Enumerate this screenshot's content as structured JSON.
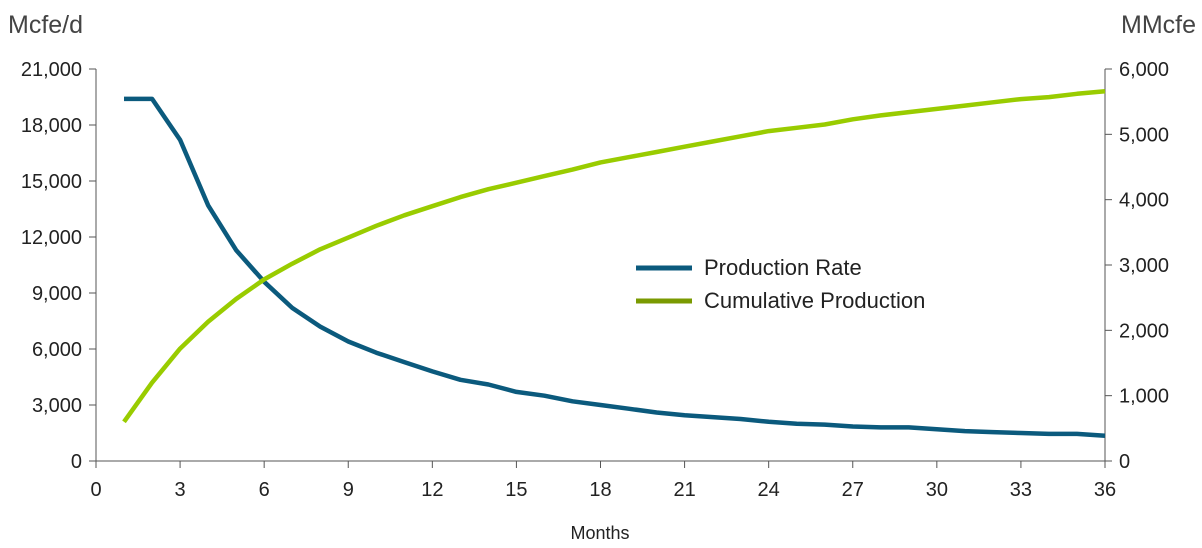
{
  "chart_data": {
    "type": "line",
    "xlabel": "Months",
    "y_left_label": "Mcfe/d",
    "y_right_label": "MMcfe",
    "xlim": [
      0,
      36
    ],
    "x_ticks": [
      0,
      3,
      6,
      9,
      12,
      15,
      18,
      21,
      24,
      27,
      30,
      33,
      36
    ],
    "y_left_lim": [
      0,
      21000
    ],
    "y_left_ticks": [
      "0",
      "3,000",
      "6,000",
      "9,000",
      "12,000",
      "15,000",
      "18,000",
      "21,000"
    ],
    "y_right_lim": [
      0,
      6000
    ],
    "y_right_ticks": [
      "0",
      "1,000",
      "2,000",
      "3,000",
      "4,000",
      "5,000",
      "6,000"
    ],
    "grid": false,
    "legend_position": "center-right",
    "series": [
      {
        "name": "Production Rate",
        "axis": "left",
        "color": "#0b5a7d",
        "x": [
          1,
          2,
          3,
          4,
          5,
          6,
          7,
          8,
          9,
          10,
          11,
          12,
          13,
          14,
          15,
          16,
          17,
          18,
          19,
          20,
          21,
          22,
          23,
          24,
          25,
          26,
          27,
          28,
          29,
          30,
          31,
          32,
          33,
          34,
          35,
          36
        ],
        "values": [
          19400,
          19400,
          17200,
          13700,
          11300,
          9600,
          8200,
          7200,
          6400,
          5800,
          5300,
          4800,
          4350,
          4100,
          3700,
          3500,
          3200,
          3000,
          2800,
          2600,
          2450,
          2350,
          2250,
          2100,
          2000,
          1950,
          1850,
          1800,
          1800,
          1700,
          1600,
          1550,
          1500,
          1450,
          1450,
          1350
        ]
      },
      {
        "name": "Cumulative Production",
        "axis": "right",
        "color": "#99cc00",
        "legend_color": "#7a9a01",
        "x": [
          1,
          2,
          3,
          4,
          5,
          6,
          7,
          8,
          9,
          10,
          11,
          12,
          13,
          14,
          15,
          16,
          17,
          18,
          19,
          20,
          21,
          22,
          23,
          24,
          25,
          26,
          27,
          28,
          29,
          30,
          31,
          32,
          33,
          34,
          35,
          36
        ],
        "values": [
          600,
          1200,
          1720,
          2130,
          2480,
          2780,
          3020,
          3240,
          3420,
          3600,
          3760,
          3900,
          4040,
          4160,
          4260,
          4360,
          4460,
          4570,
          4650,
          4730,
          4810,
          4890,
          4970,
          5050,
          5100,
          5150,
          5230,
          5290,
          5340,
          5390,
          5440,
          5490,
          5540,
          5570,
          5620,
          5660
        ]
      }
    ]
  }
}
